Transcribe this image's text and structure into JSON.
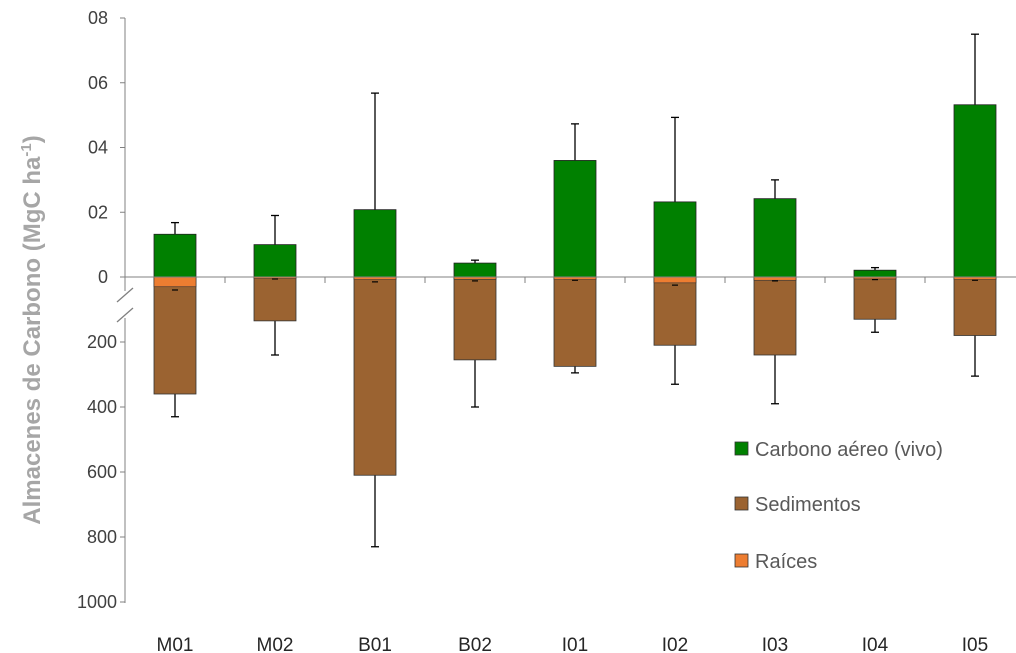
{
  "chart_data": {
    "type": "bar",
    "stacked": true,
    "diverging": true,
    "axis_break": true,
    "categories": [
      "M01",
      "M02",
      "B01",
      "B02",
      "I01",
      "I02",
      "I03",
      "I04",
      "I05"
    ],
    "ylabel": "Almacenes de Carbono (MgC ha",
    "ylabel_sup": "-1",
    "ylabel_close": ")",
    "yticks_above": [
      "08",
      "06",
      "04",
      "02",
      "0"
    ],
    "yticks_below": [
      "200",
      "400",
      "600",
      "800",
      "1000"
    ],
    "upper_range": [
      0,
      80
    ],
    "lower_range": [
      0,
      1000
    ],
    "series": [
      {
        "name": "Carbono aéreo (vivo)",
        "color": "#008000",
        "direction": "up",
        "values": [
          13.2,
          10.0,
          20.8,
          4.3,
          36.0,
          23.2,
          24.2,
          2.1,
          53.2
        ],
        "error_top": [
          16.8,
          19.0,
          56.8,
          5.2,
          47.3,
          49.3,
          30.0,
          2.9,
          75.0
        ]
      },
      {
        "name": "Sedimentos",
        "color": "#9b6331",
        "direction": "down",
        "values": [
          360,
          135,
          610,
          255,
          275,
          210,
          240,
          130,
          180
        ],
        "error_bottom": [
          430,
          240,
          830,
          400,
          295,
          330,
          390,
          170,
          305
        ]
      },
      {
        "name": "Raíces",
        "color": "#ed7d31",
        "direction": "down",
        "values": [
          30,
          5,
          8,
          7,
          8,
          18,
          10,
          6,
          8
        ],
        "error_bottom": [
          40,
          6,
          15,
          12,
          10,
          25,
          12,
          8,
          10
        ]
      }
    ],
    "legend_position": "right",
    "grid": false
  }
}
